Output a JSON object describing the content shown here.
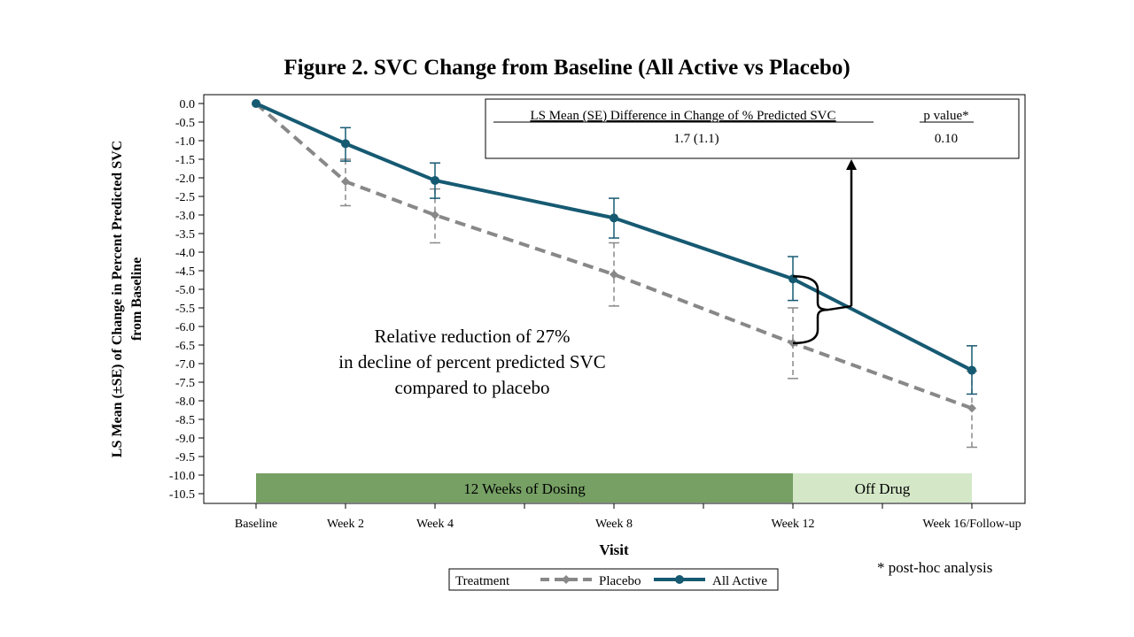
{
  "chart_data": {
    "type": "line",
    "title": "Figure 2. SVC Change from Baseline (All Active vs Placebo)",
    "xlabel": "Visit",
    "ylabel_lines": [
      "LS Mean (±SE) of Change in Percent Predicted SVC",
      "from Baseline"
    ],
    "categories": [
      "Baseline",
      "Week 2",
      "Week 4",
      "Week 8",
      "Week 12",
      "Week 16/Follow-up"
    ],
    "x_weeks": [
      0,
      2,
      4,
      8,
      12,
      16
    ],
    "ylim": [
      -10.5,
      0.0
    ],
    "yticks": [
      0.0,
      -0.5,
      -1.0,
      -1.5,
      -2.0,
      -2.5,
      -3.0,
      -3.5,
      -4.0,
      -4.5,
      -5.0,
      -5.5,
      -6.0,
      -6.5,
      -7.0,
      -7.5,
      -8.0,
      -8.5,
      -9.0,
      -9.5,
      -10.0,
      -10.5
    ],
    "series": [
      {
        "name": "Placebo",
        "color": "#888888",
        "style": "dashed",
        "marker": "diamond",
        "values": [
          0.0,
          -2.1,
          -3.0,
          -4.6,
          -6.45,
          -8.2
        ],
        "err_low": [
          null,
          -2.75,
          -3.75,
          -5.45,
          -7.4,
          -9.25
        ],
        "err_high": [
          null,
          -1.5,
          -2.3,
          -3.75,
          -5.5,
          -7.2
        ]
      },
      {
        "name": "All Active",
        "color": "#165a72",
        "style": "solid",
        "marker": "circle",
        "values": [
          0.0,
          -1.08,
          -2.07,
          -3.08,
          -4.72,
          -7.18
        ],
        "err_low": [
          null,
          -1.55,
          -2.55,
          -3.62,
          -5.3,
          -7.82
        ],
        "err_high": [
          null,
          -0.65,
          -1.6,
          -2.55,
          -4.12,
          -6.52
        ]
      }
    ],
    "bands": [
      {
        "label": "12 Weeks of Dosing",
        "x_start": 0,
        "x_end": 12,
        "color": "#76a064"
      },
      {
        "label": "Off Drug",
        "x_start": 12,
        "x_end": 16,
        "color": "#d4e8c8"
      }
    ],
    "annotation_lines": [
      "Relative reduction of 27%",
      "in decline of percent predicted SVC",
      "compared to placebo"
    ],
    "stats_table": {
      "header_diff": "LS Mean (SE) Difference in Change of % Predicted SVC",
      "header_p": "p value*",
      "value_diff": "1.7 (1.1)",
      "value_p": "0.10"
    },
    "legend": {
      "title": "Treatment",
      "placement": "bottom"
    },
    "footnote": "* post-hoc analysis"
  }
}
